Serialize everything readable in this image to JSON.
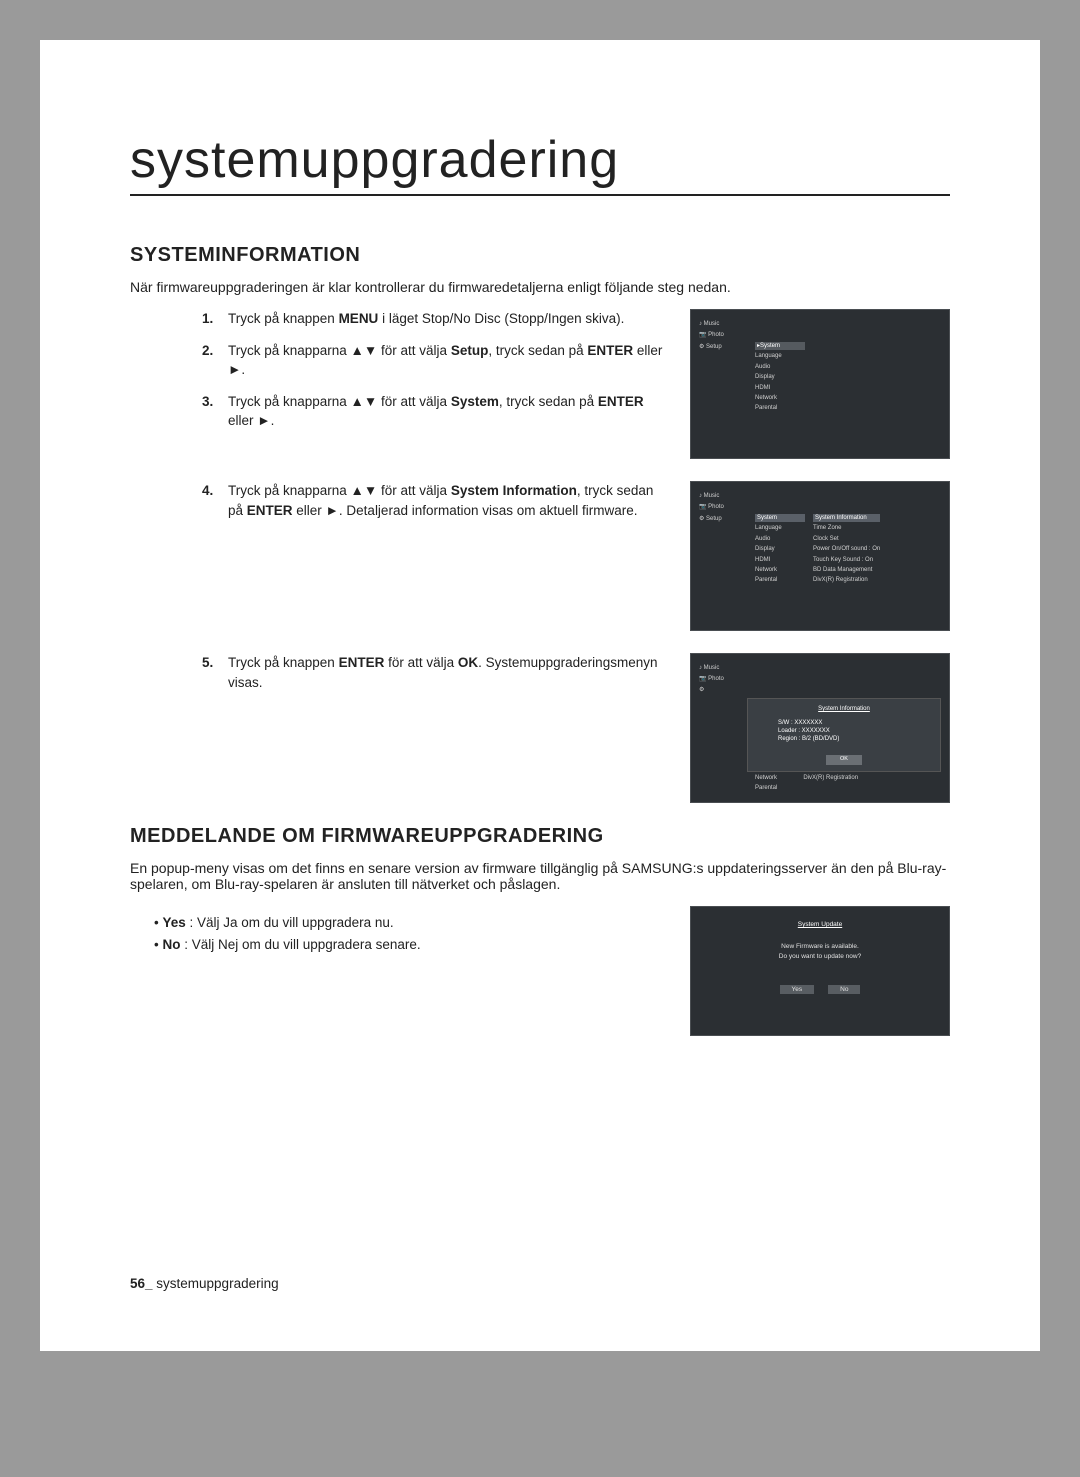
{
  "page": {
    "title_main": "systemuppgradering",
    "footer_num": "56_",
    "footer_text": " systemuppgradering"
  },
  "section1": {
    "heading": "SYSTEMINFORMATION",
    "intro": "När firmwareuppgraderingen är klar kontrollerar du firmwaredetaljerna enligt följande steg nedan.",
    "steps": [
      {
        "n": "1.",
        "pre": "Tryck på knappen ",
        "b1": "MENU",
        "post": " i läget Stop/No Disc (Stopp/Ingen skiva)."
      },
      {
        "n": "2.",
        "pre": "Tryck på knapparna ▲▼ för att välja ",
        "b1": "Setup",
        "mid": ", tryck sedan på ",
        "b2": "ENTER",
        "post": " eller ►."
      },
      {
        "n": "3.",
        "pre": "Tryck på knapparna ▲▼ för att välja ",
        "b1": "System",
        "mid": ", tryck sedan på ",
        "b2": "ENTER",
        "post": " eller ►."
      },
      {
        "n": "4.",
        "pre": "Tryck på knapparna ▲▼ för att välja ",
        "b1": "System Information",
        "mid": ", tryck sedan på ",
        "b2": "ENTER",
        "post": " eller ►. Detaljerad information visas om aktuell firmware."
      },
      {
        "n": "5.",
        "pre": "Tryck på knappen ",
        "b1": "ENTER",
        "mid": " för att välja ",
        "b2": "OK",
        "post": ". Systemuppgraderingsmenyn visas."
      }
    ]
  },
  "section2": {
    "heading": "MEDDELANDE OM FIRMWAREUPPGRADERING",
    "intro": "En popup-meny visas om det finns en senare version av firmware tillgänglig på SAMSUNG:s uppdateringsserver än den på Blu-ray-spelaren, om Blu-ray-spelaren är ansluten till nätverket och påslagen.",
    "bullets": [
      {
        "b": "Yes",
        "t": " : Välj Ja om du vill uppgradera nu."
      },
      {
        "b": "No",
        "t": " : Välj Nej om du vill uppgradera senare."
      }
    ]
  },
  "shot1": {
    "left": [
      "♪  Music",
      "📷 Photo",
      "⚙  Setup"
    ],
    "mid_hl": "▸System",
    "mid": [
      "Language",
      "Audio",
      "Display",
      "HDMI",
      "Network",
      "Parental"
    ]
  },
  "shot2": {
    "left": [
      "♪  Music",
      "📷 Photo",
      "⚙  Setup"
    ],
    "mid_hl": "System",
    "mid": [
      "Language",
      "Audio",
      "Display",
      "HDMI",
      "Network",
      "Parental"
    ],
    "right_hl": "System Information",
    "right": [
      "Time Zone",
      "Clock Set",
      "Power On/Off sound    : On",
      "Touch Key Sound       : On",
      "BD Data Management",
      "DivX(R) Registration"
    ]
  },
  "shot3": {
    "left": [
      "♪  Music",
      "📷 Photo",
      "⚙"
    ],
    "panel_title": "System Information",
    "info": [
      "S/W : XXXXXXX",
      "Loader : XXXXXXX",
      "Region : B/2 (BD/DVD)"
    ],
    "ok": "OK",
    "below": [
      "Network",
      "Parental",
      "DivX(R) Registration"
    ]
  },
  "shot4": {
    "title": "System Update",
    "line1": "New Firmware is available.",
    "line2": "Do you want to update now?",
    "yes": "Yes",
    "no": "No"
  }
}
